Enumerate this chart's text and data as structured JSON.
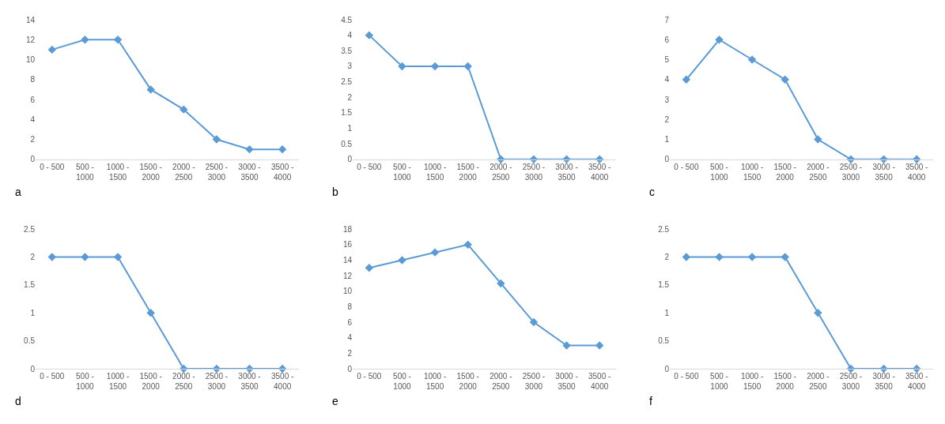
{
  "chart_data": [
    {
      "type": "line",
      "annotations": [
        "a"
      ],
      "categories": [
        "0 - 500",
        "500 - 1000",
        "1000 - 1500",
        "1500 - 2000",
        "2000 - 2500",
        "2500 - 3000",
        "3000 - 3500",
        "3500 - 4000"
      ],
      "values": [
        11,
        12,
        12,
        7,
        5,
        2,
        1,
        1
      ],
      "color": "#5b9bd5",
      "ylim": [
        0,
        14
      ],
      "yticks": [
        0,
        2,
        4,
        6,
        8,
        10,
        12,
        14
      ],
      "marker": "diamond"
    },
    {
      "type": "line",
      "annotations": [
        "b"
      ],
      "categories": [
        "0 - 500",
        "500 - 1000",
        "1000 - 1500",
        "1500 - 2000",
        "2000 - 2500",
        "2500 - 3000",
        "3000 - 3500",
        "3500 - 4000"
      ],
      "values": [
        4,
        3,
        3,
        3,
        0,
        0,
        0,
        0
      ],
      "color": "#5b9bd5",
      "ylim": [
        0,
        4.5
      ],
      "yticks": [
        0,
        0.5,
        1,
        1.5,
        2,
        2.5,
        3,
        3.5,
        4,
        4.5
      ],
      "marker": "diamond"
    },
    {
      "type": "line",
      "annotations": [
        "c"
      ],
      "categories": [
        "0 - 500",
        "500 - 1000",
        "1000 - 1500",
        "1500 - 2000",
        "2000 - 2500",
        "2500 - 3000",
        "3000 - 3500",
        "3500 - 4000"
      ],
      "values": [
        4,
        6,
        5,
        4,
        1,
        0,
        0,
        0
      ],
      "color": "#5b9bd5",
      "ylim": [
        0,
        7
      ],
      "yticks": [
        0,
        1,
        2,
        3,
        4,
        5,
        6,
        7
      ],
      "marker": "diamond"
    },
    {
      "type": "line",
      "annotations": [
        "d"
      ],
      "categories": [
        "0 - 500",
        "500 - 1000",
        "1000 - 1500",
        "1500 - 2000",
        "2000 - 2500",
        "2500 - 3000",
        "3000 - 3500",
        "3500 - 4000"
      ],
      "values": [
        2,
        2,
        2,
        1,
        0,
        0,
        0,
        0
      ],
      "color": "#5b9bd5",
      "ylim": [
        0,
        2.5
      ],
      "yticks": [
        0,
        0.5,
        1,
        1.5,
        2,
        2.5
      ],
      "marker": "diamond"
    },
    {
      "type": "line",
      "annotations": [
        "e"
      ],
      "categories": [
        "0 - 500",
        "500 - 1000",
        "1000 - 1500",
        "1500 - 2000",
        "2000 - 2500",
        "2500 - 3000",
        "3000 - 3500",
        "3500 - 4000"
      ],
      "values": [
        13,
        14,
        15,
        16,
        11,
        6,
        3,
        3
      ],
      "color": "#5b9bd5",
      "ylim": [
        0,
        18
      ],
      "yticks": [
        0,
        2,
        4,
        6,
        8,
        10,
        12,
        14,
        16,
        18
      ],
      "marker": "diamond"
    },
    {
      "type": "line",
      "annotations": [
        "f"
      ],
      "categories": [
        "0 - 500",
        "500 - 1000",
        "1000 - 1500",
        "1500 - 2000",
        "2000 - 2500",
        "2500 - 3000",
        "3000 - 3500",
        "3500 - 4000"
      ],
      "values": [
        2,
        2,
        2,
        2,
        1,
        0,
        0,
        0
      ],
      "color": "#5b9bd5",
      "ylim": [
        0,
        2.5
      ],
      "yticks": [
        0,
        0.5,
        1,
        1.5,
        2,
        2.5
      ],
      "marker": "diamond"
    }
  ]
}
